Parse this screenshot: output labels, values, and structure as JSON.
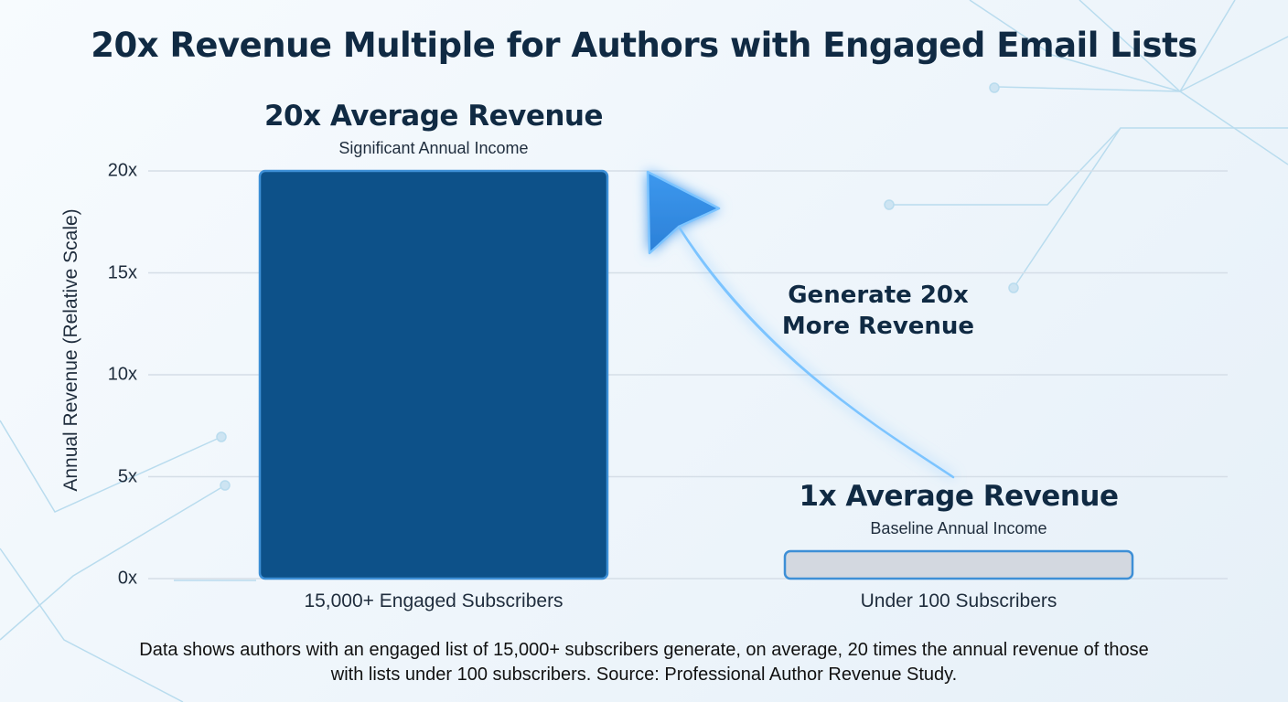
{
  "chart_data": {
    "type": "bar",
    "title": "20x Revenue Multiple for Authors with Engaged Email Lists",
    "ylabel": "Annual Revenue (Relative Scale)",
    "xlabel": "",
    "ylim": [
      0,
      20
    ],
    "yticks": [
      "0x",
      "5x",
      "10x",
      "15x",
      "20x"
    ],
    "categories": [
      "15,000+ Engaged Subscribers",
      "Under 100 Subscribers"
    ],
    "values": [
      20,
      1
    ],
    "bar_colors": [
      "#0d5189",
      "#d3d8e0"
    ],
    "bar_outline": "#3d8fd6",
    "grid": true,
    "annotations": [
      {
        "title": "20x Average Revenue",
        "subtitle": "Significant Annual Income"
      },
      {
        "title": "1x Average Revenue",
        "subtitle": "Baseline Annual Income"
      }
    ],
    "arrow_label": [
      "Generate 20x",
      "More Revenue"
    ]
  },
  "footnote": [
    "Data shows authors with an engaged list of 15,000+ subscribers generate, on average, 20 times the annual revenue of those",
    "with lists under 100 subscribers. Source: Professional Author Revenue Study."
  ]
}
